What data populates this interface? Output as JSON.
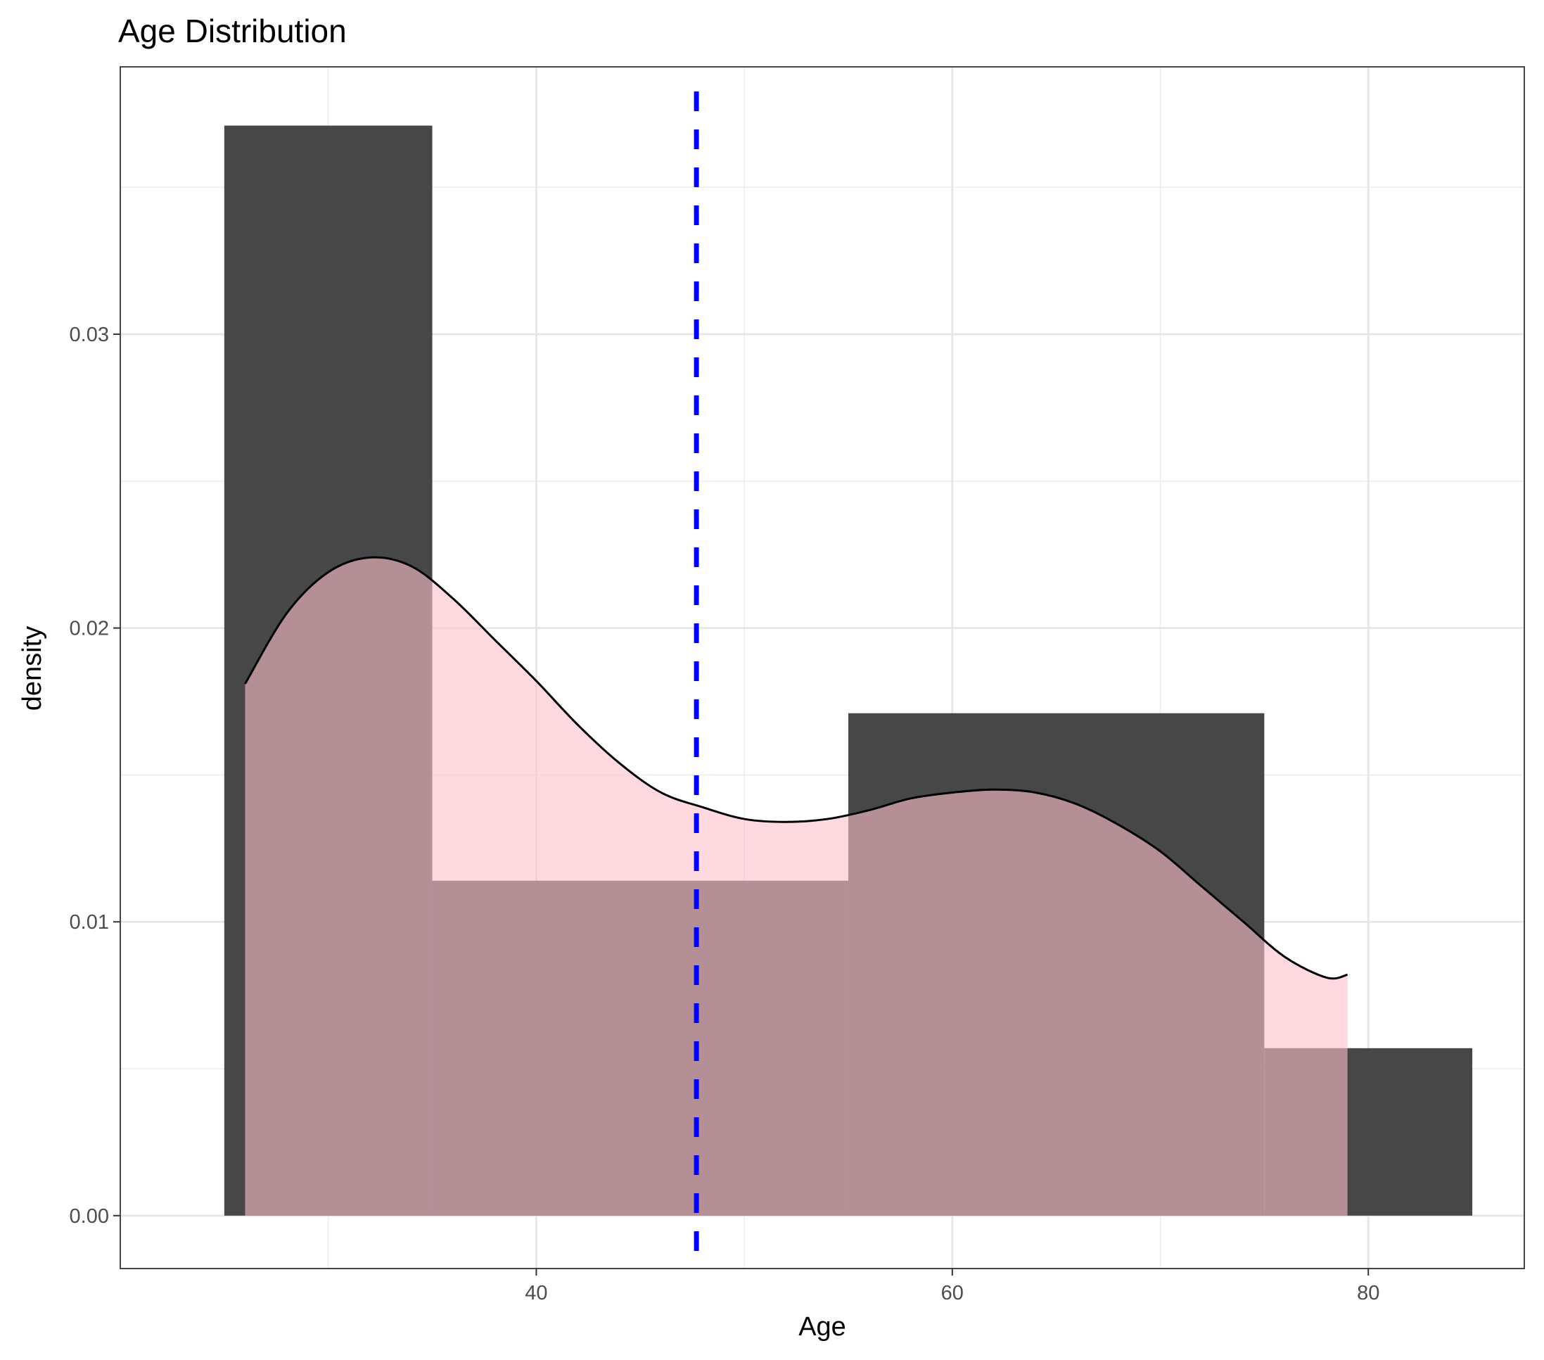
{
  "chart_data": {
    "type": "bar",
    "title": "Age Distribution",
    "xlabel": "Age",
    "ylabel": "density",
    "xlim": [
      20.0,
      87.5
    ],
    "ylim": [
      -0.0018,
      0.0391
    ],
    "x_ticks": [
      40,
      60,
      80
    ],
    "x_tick_labels": [
      "40",
      "60",
      "80"
    ],
    "y_ticks": [
      0.0,
      0.01,
      0.02,
      0.03
    ],
    "y_tick_labels": [
      "0.00",
      "0.01",
      "0.02",
      "0.03"
    ],
    "x_minor_gridlines": [
      30,
      50,
      70
    ],
    "y_minor_gridlines": [
      0.005,
      0.015,
      0.025,
      0.035
    ],
    "grid": true,
    "histogram": {
      "bins": [
        {
          "x0": 25,
          "x1": 35,
          "density": 0.0371
        },
        {
          "x0": 35,
          "x1": 55,
          "density": 0.0114
        },
        {
          "x0": 55,
          "x1": 75,
          "density": 0.0171
        },
        {
          "x0": 75,
          "x1": 85,
          "density": 0.0057
        }
      ],
      "color": "#474747"
    },
    "density_curve": {
      "x": [
        26,
        28,
        30,
        32,
        34,
        36,
        38,
        40,
        42,
        44,
        46,
        48,
        50,
        52,
        54,
        56,
        58,
        60,
        62,
        64,
        66,
        68,
        70,
        72,
        74,
        76,
        78,
        79
      ],
      "y": [
        0.0181,
        0.0205,
        0.0219,
        0.0224,
        0.0221,
        0.021,
        0.0196,
        0.0182,
        0.0167,
        0.0154,
        0.0144,
        0.0139,
        0.0135,
        0.0134,
        0.0135,
        0.0138,
        0.0142,
        0.0144,
        0.0145,
        0.0144,
        0.014,
        0.0133,
        0.0124,
        0.0112,
        0.01,
        0.0088,
        0.0081,
        0.0082
      ],
      "line_color": "#000000",
      "fill_color": "#FFC0CB",
      "fill_opacity": 0.6
    },
    "reference_line": {
      "x": 47.7,
      "color": "#0000FF",
      "style": "dashed"
    }
  }
}
